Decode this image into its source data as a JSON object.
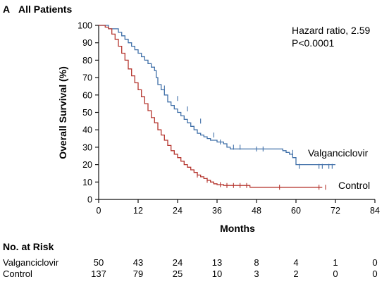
{
  "chart_data": {
    "type": "line",
    "panel_label": "A",
    "title": "All Patients",
    "xlabel": "Months",
    "ylabel": "Overall Survival (%)",
    "xlim": [
      0,
      84
    ],
    "ylim": [
      0,
      100
    ],
    "x_ticks": [
      0,
      12,
      24,
      36,
      48,
      60,
      72,
      84
    ],
    "y_ticks": [
      0,
      10,
      20,
      30,
      40,
      50,
      60,
      70,
      80,
      90,
      100
    ],
    "x_tick_labels": [
      "0",
      "12",
      "24",
      "36",
      "48",
      "60",
      "72",
      "84"
    ],
    "y_tick_labels": [
      "0",
      "10",
      "20",
      "30",
      "40",
      "50",
      "60",
      "70",
      "80",
      "90",
      "100"
    ],
    "annotation": [
      "Hazard ratio, 2.59",
      "P<0.0001"
    ],
    "grid": false,
    "series": [
      {
        "name": "Valganciclovir",
        "color": "#3f6fa8",
        "steps": [
          [
            0,
            100
          ],
          [
            3,
            98
          ],
          [
            6,
            96
          ],
          [
            7,
            94
          ],
          [
            8,
            92
          ],
          [
            9,
            90
          ],
          [
            10,
            88
          ],
          [
            11,
            86
          ],
          [
            12,
            84
          ],
          [
            13,
            82
          ],
          [
            14,
            80
          ],
          [
            15,
            78
          ],
          [
            16,
            76
          ],
          [
            17,
            74
          ],
          [
            17.5,
            70
          ],
          [
            18,
            66
          ],
          [
            19,
            63
          ],
          [
            20,
            60
          ],
          [
            21,
            56
          ],
          [
            22,
            54
          ],
          [
            23,
            52
          ],
          [
            24,
            50
          ],
          [
            25,
            48
          ],
          [
            26,
            46
          ],
          [
            27,
            44
          ],
          [
            28,
            42
          ],
          [
            29,
            40
          ],
          [
            30,
            38
          ],
          [
            31,
            37
          ],
          [
            32,
            36
          ],
          [
            33,
            35
          ],
          [
            34,
            34
          ],
          [
            36,
            33
          ],
          [
            38,
            32
          ],
          [
            39,
            30
          ],
          [
            40,
            29
          ],
          [
            42,
            29
          ],
          [
            50,
            29
          ],
          [
            56,
            28
          ],
          [
            57,
            27
          ],
          [
            58,
            26
          ],
          [
            59,
            24
          ],
          [
            60,
            20
          ],
          [
            64,
            20
          ],
          [
            72,
            20
          ]
        ],
        "censors": [
          [
            20,
            64
          ],
          [
            24,
            58
          ],
          [
            27,
            52
          ],
          [
            31,
            45
          ],
          [
            35,
            37
          ],
          [
            37,
            33
          ],
          [
            41,
            30
          ],
          [
            43,
            30
          ],
          [
            48,
            29
          ],
          [
            50,
            29
          ],
          [
            59,
            27
          ],
          [
            61,
            19
          ],
          [
            67,
            19
          ],
          [
            68,
            19
          ],
          [
            70,
            19
          ],
          [
            71,
            19
          ]
        ]
      },
      {
        "name": "Control",
        "color": "#b5352e",
        "steps": [
          [
            0,
            100
          ],
          [
            2,
            99
          ],
          [
            3,
            98
          ],
          [
            4,
            95
          ],
          [
            5,
            92
          ],
          [
            6,
            88
          ],
          [
            7,
            84
          ],
          [
            8,
            80
          ],
          [
            9,
            75
          ],
          [
            10,
            71
          ],
          [
            11,
            67
          ],
          [
            12,
            63
          ],
          [
            13,
            59
          ],
          [
            14,
            55
          ],
          [
            15,
            51
          ],
          [
            16,
            47
          ],
          [
            17,
            44
          ],
          [
            18,
            40
          ],
          [
            19,
            37
          ],
          [
            20,
            34
          ],
          [
            21,
            31
          ],
          [
            22,
            28
          ],
          [
            23,
            26
          ],
          [
            24,
            24
          ],
          [
            25,
            22
          ],
          [
            26,
            20
          ],
          [
            27,
            18.5
          ],
          [
            28,
            17
          ],
          [
            29,
            15.5
          ],
          [
            30,
            14
          ],
          [
            31,
            13
          ],
          [
            32,
            12
          ],
          [
            33,
            11
          ],
          [
            34,
            10
          ],
          [
            35,
            9
          ],
          [
            36,
            8.5
          ],
          [
            38,
            8
          ],
          [
            40,
            8
          ],
          [
            42,
            8
          ],
          [
            44,
            8
          ],
          [
            46,
            7
          ],
          [
            48,
            7
          ],
          [
            56,
            7
          ],
          [
            60,
            7
          ],
          [
            68,
            7
          ]
        ],
        "censors": [
          [
            30,
            14
          ],
          [
            33,
            11
          ],
          [
            37,
            8.5
          ],
          [
            39,
            8
          ],
          [
            41,
            8
          ],
          [
            43,
            8
          ],
          [
            45,
            8
          ],
          [
            55,
            7
          ],
          [
            67,
            7
          ],
          [
            69,
            7
          ]
        ]
      }
    ],
    "risk_table": {
      "title": "No. at Risk",
      "rows": [
        {
          "name": "Valganciclovir",
          "values": [
            "50",
            "43",
            "24",
            "13",
            "8",
            "4",
            "1",
            "0"
          ]
        },
        {
          "name": "Control",
          "values": [
            "137",
            "79",
            "25",
            "10",
            "3",
            "2",
            "0",
            "0"
          ]
        }
      ]
    }
  }
}
